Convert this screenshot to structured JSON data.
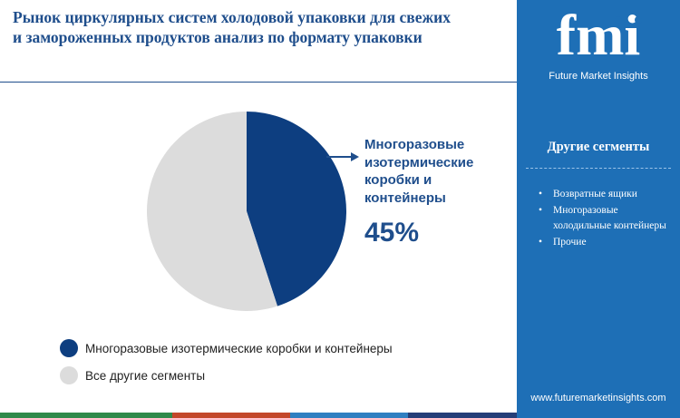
{
  "header": {
    "title_line1": "Рынок циркулярных систем холодовой упаковки для свежих",
    "title_line2": "и замороженных продуктов анализ по формату упаковки"
  },
  "brand": {
    "logo_text": "fmi",
    "logo_subtitle": "Future Market Insights",
    "url": "www.futuremarketinsights.com"
  },
  "sidebar": {
    "title": "Другие сегменты",
    "items": [
      "Возвратные ящики",
      "Многоразовые холодильные контейнеры",
      "Прочие"
    ]
  },
  "callout": {
    "label": "Многоразовые изотермические коробки и контейнеры",
    "value": "45%"
  },
  "chart_data": {
    "type": "pie",
    "slices": [
      {
        "label": "Многоразовые изотермические коробки и контейнеры",
        "value": 45,
        "color": "#0d3e80"
      },
      {
        "label": "Все другие сегменты",
        "value": 55,
        "color": "#dcdcdc"
      }
    ],
    "legend_position": "bottom-left"
  },
  "colors": {
    "accent": "#1f4e8c",
    "sidebar": "#1e6fb6",
    "bottom_bar": [
      "#2f8a4a",
      "#c3472a",
      "#2f7fc1",
      "#243e78"
    ]
  }
}
